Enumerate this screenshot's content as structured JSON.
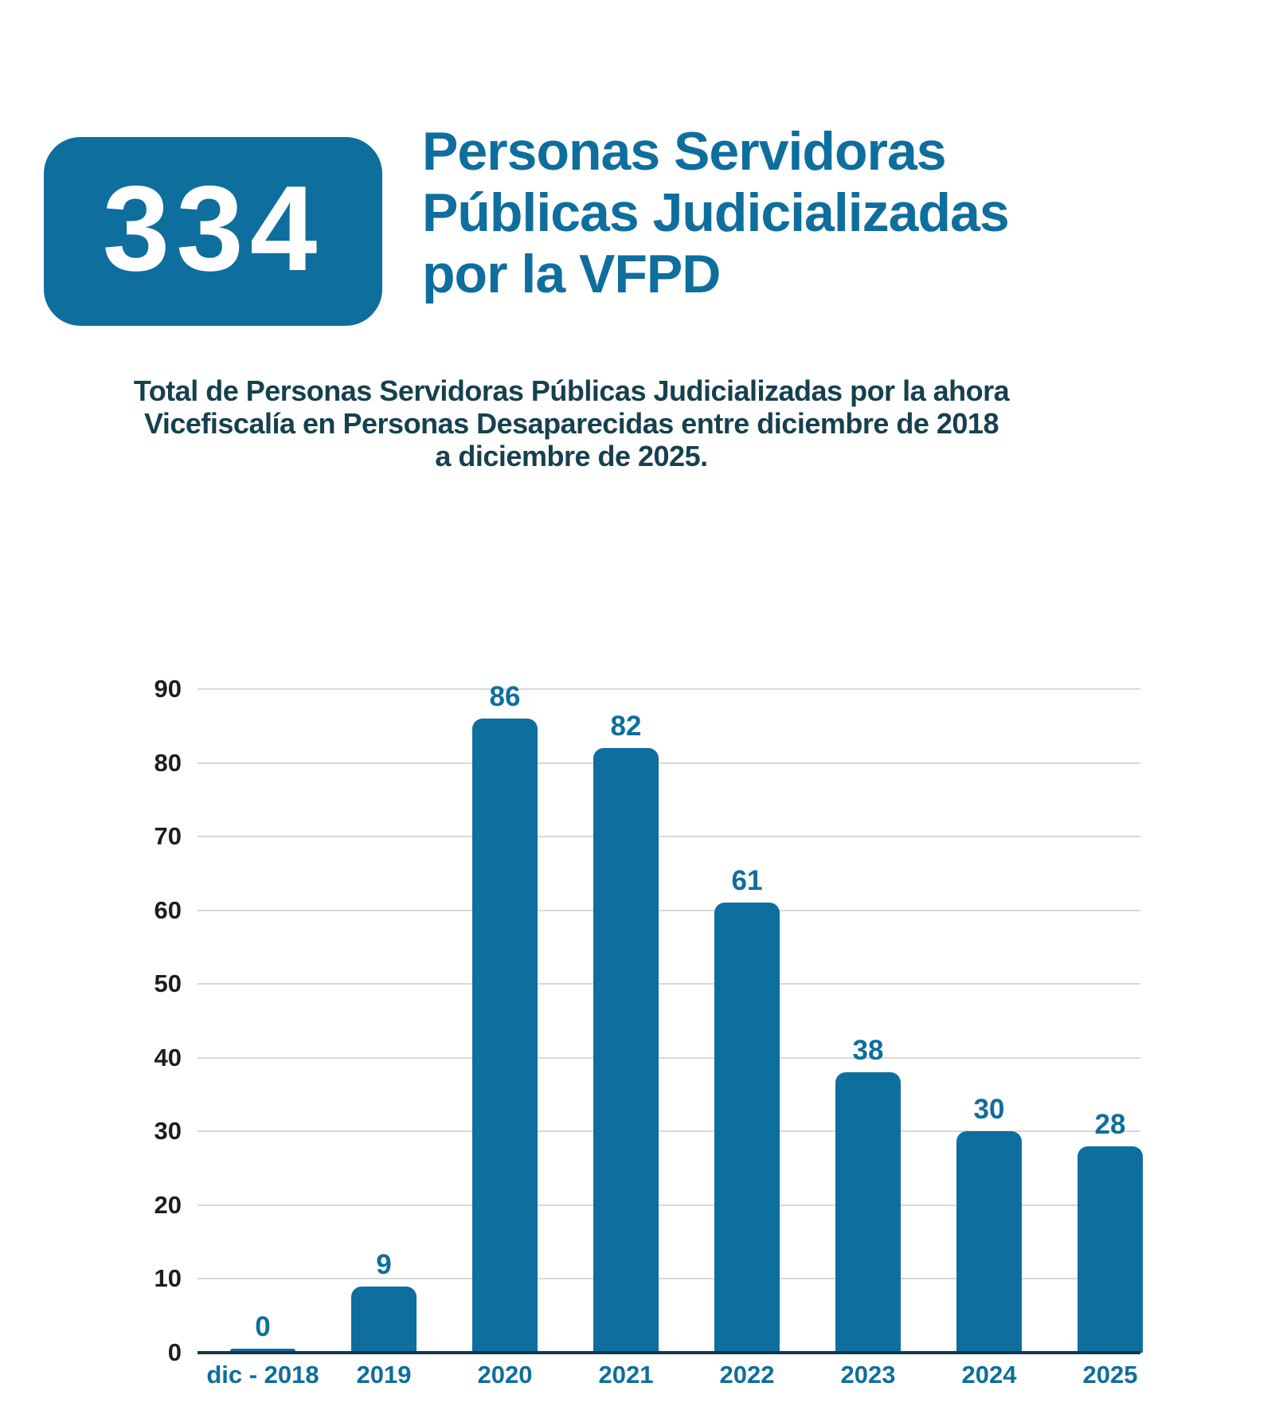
{
  "badge": {
    "value": "334"
  },
  "title": {
    "lines": [
      "Personas Servidoras",
      "Públicas Judicializadas",
      "por la VFPD"
    ]
  },
  "subtitle": {
    "lines": [
      "Total de Personas Servidoras Públicas Judicializadas por la ahora",
      "Vicefiscalía en Personas Desaparecidas entre diciembre de 2018",
      "a diciembre de 2025."
    ]
  },
  "chart_data": {
    "type": "bar",
    "categories": [
      "dic - 2018",
      "2019",
      "2020",
      "2021",
      "2022",
      "2023",
      "2024",
      "2025"
    ],
    "values": [
      0,
      9,
      86,
      82,
      61,
      38,
      30,
      28
    ],
    "total": 334,
    "title": "",
    "xlabel": "",
    "ylabel": "",
    "ylim": [
      0,
      90
    ],
    "yticks": [
      0,
      10,
      20,
      30,
      40,
      50,
      60,
      70,
      80,
      90
    ],
    "grid": true,
    "legend": "none",
    "bar_color": "#0E6E9D",
    "value_label_color": "#0E6E9D",
    "x_tick_color": "#0E6E9D",
    "y_tick_color": "#1D1D1B",
    "gridline_color": "#D9D9D9",
    "axis_line_color": "#14374B",
    "title_color": "#0E6E9D",
    "subtitle_color": "#17404F",
    "badge_bg_color": "#0E6E9D",
    "badge_text_color": "#FFFFFF"
  }
}
